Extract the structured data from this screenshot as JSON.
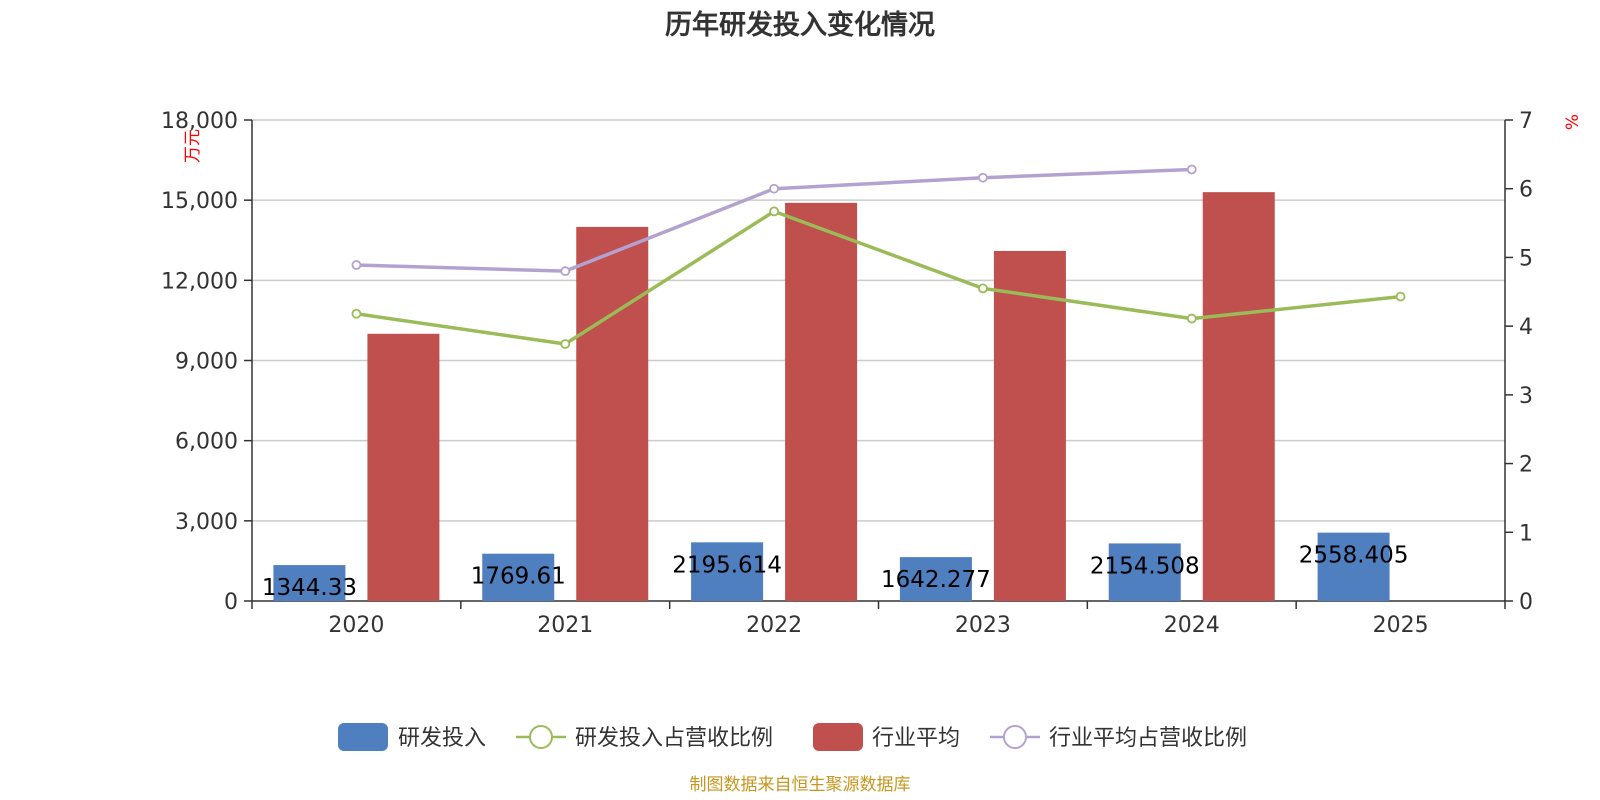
{
  "chart_data": {
    "type": "bar",
    "title": "历年研发投入变化情况",
    "categories": [
      "2020",
      "2021",
      "2022",
      "2023",
      "2024",
      "2025"
    ],
    "y_left": {
      "unit": "万元",
      "ylim": [
        0,
        18000
      ],
      "ticks": [
        0,
        3000,
        6000,
        9000,
        12000,
        15000,
        18000
      ],
      "tick_labels": [
        "0",
        "3,000",
        "6,000",
        "9,000",
        "12,000",
        "15,000",
        "18,000"
      ]
    },
    "y_right": {
      "unit": "%",
      "ylim": [
        0,
        7
      ],
      "ticks": [
        0,
        1,
        2,
        3,
        4,
        5,
        6,
        7
      ],
      "tick_labels": [
        "0",
        "1",
        "2",
        "3",
        "4",
        "5",
        "6",
        "7"
      ]
    },
    "series": [
      {
        "name": "研发投入",
        "type": "bar",
        "axis": "left",
        "color": "#4f7fbf",
        "values": [
          1344.33,
          1769.61,
          2195.614,
          1642.277,
          2154.508,
          2558.405
        ],
        "data_labels": [
          "1344.33",
          "1769.61",
          "2195.614",
          "1642.277",
          "2154.508",
          "2558.405"
        ]
      },
      {
        "name": "行业平均",
        "type": "bar",
        "axis": "left",
        "color": "#c0504d",
        "values": [
          10000,
          14000,
          14900,
          13100,
          15300,
          null
        ]
      },
      {
        "name": "研发投入占营收比例",
        "type": "line",
        "axis": "right",
        "color": "#9bbb59",
        "values": [
          4.18,
          3.74,
          5.67,
          4.55,
          4.11,
          4.43
        ]
      },
      {
        "name": "行业平均占营收比例",
        "type": "line",
        "axis": "right",
        "color": "#b3a2cf",
        "values": [
          4.89,
          4.8,
          6.0,
          6.16,
          6.28,
          null
        ]
      }
    ],
    "grid": true,
    "legend_position": "bottom"
  },
  "source_note": "制图数据来自恒生聚源数据库"
}
